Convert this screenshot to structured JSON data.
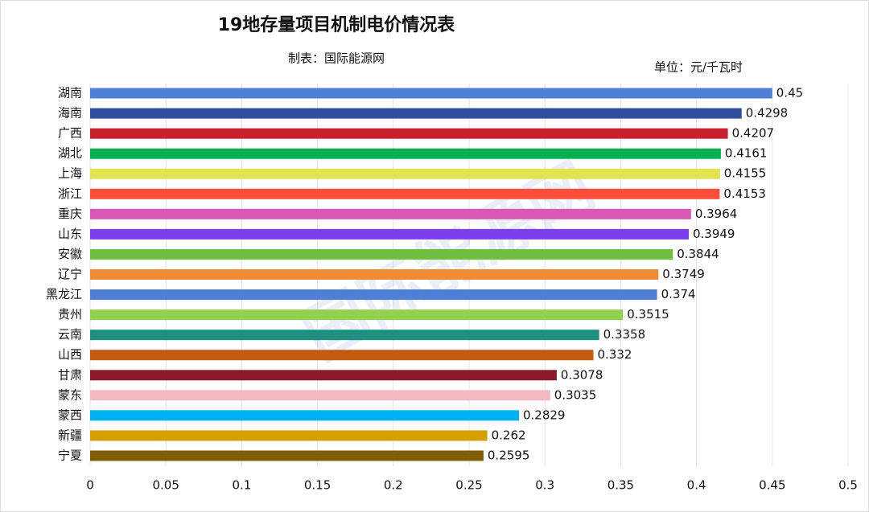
{
  "chart_data": {
    "type": "hbar",
    "title": "19地存量项目机制电价情况表",
    "subtitle": "制表：国际能源网",
    "unit": "单位：元/千瓦时",
    "watermark": "国际能源网",
    "categories": [
      "湖南",
      "海南",
      "广西",
      "湖北",
      "上海",
      "浙江",
      "重庆",
      "山东",
      "安徽",
      "辽宁",
      "黑龙江",
      "贵州",
      "云南",
      "山西",
      "甘肃",
      "蒙东",
      "蒙西",
      "新疆",
      "宁夏"
    ],
    "values": [
      0.45,
      0.4298,
      0.4207,
      0.4161,
      0.4155,
      0.4153,
      0.3964,
      0.3949,
      0.3844,
      0.3749,
      0.374,
      0.3515,
      0.3358,
      0.332,
      0.3078,
      0.3035,
      0.2829,
      0.262,
      0.2595
    ],
    "colors": [
      "#4f7fd6",
      "#2f4f9e",
      "#c8202f",
      "#0aaf4f",
      "#e1e34f",
      "#ff4f3a",
      "#d957b5",
      "#7b3ff0",
      "#6fbf3f",
      "#f08a35",
      "#4f7fd6",
      "#92d050",
      "#1f8f80",
      "#c55a11",
      "#8b1a2a",
      "#f4b8c2",
      "#00b0f0",
      "#d4a000",
      "#7f6000"
    ],
    "xlim": [
      0,
      0.5
    ],
    "xticks": [
      0,
      0.05,
      0.1,
      0.15,
      0.2,
      0.25,
      0.3,
      0.35,
      0.4,
      0.45,
      0.5
    ],
    "grid": true
  }
}
